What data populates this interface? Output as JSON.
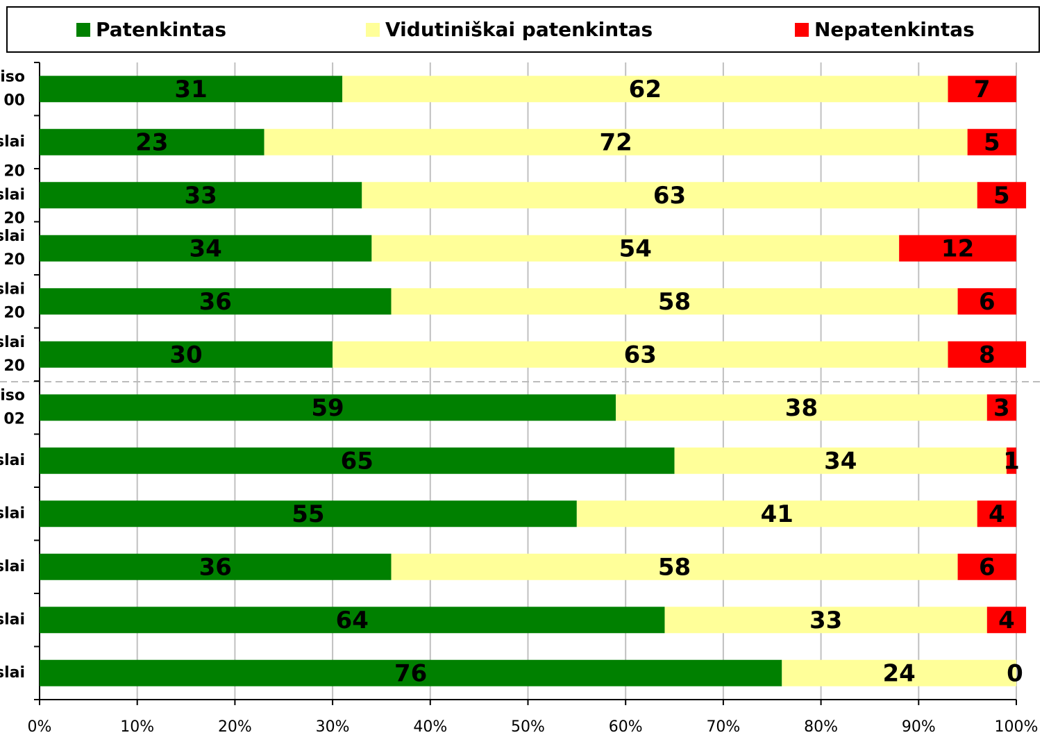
{
  "chart_data": {
    "type": "stacked-barh",
    "categories": [
      "iso\n00",
      "slai",
      "20\nslai\n20",
      "slai\n20",
      "slai\n20",
      "slai\n20",
      "iso\n02",
      "slai",
      "slai",
      "slai",
      "slai",
      "slai"
    ],
    "series": [
      {
        "name": "Patenkintas",
        "color": "#008000",
        "values": [
          31,
          23,
          33,
          34,
          36,
          30,
          59,
          65,
          55,
          36,
          64,
          76
        ]
      },
      {
        "name": "Vidutiniškai patenkintas",
        "color": "#ffff99",
        "values": [
          62,
          72,
          63,
          54,
          58,
          63,
          38,
          34,
          41,
          58,
          33,
          24
        ]
      },
      {
        "name": "Nepatenkintas",
        "color": "#ff0000",
        "values": [
          7,
          5,
          5,
          12,
          6,
          8,
          3,
          1,
          4,
          6,
          4,
          0
        ]
      }
    ],
    "xlim": [
      0,
      100
    ],
    "xticks": [
      {
        "value": 0,
        "label": "0%"
      },
      {
        "value": 10,
        "label": "10%"
      },
      {
        "value": 20,
        "label": "20%"
      },
      {
        "value": 30,
        "label": "30%"
      },
      {
        "value": 40,
        "label": "40%"
      },
      {
        "value": 50,
        "label": "50%"
      },
      {
        "value": 60,
        "label": "60%"
      },
      {
        "value": 70,
        "label": "70%"
      },
      {
        "value": 80,
        "label": "80%"
      },
      {
        "value": 90,
        "label": "90%"
      },
      {
        "value": 100,
        "label": "100%"
      }
    ],
    "grid": true,
    "legend": "top"
  }
}
